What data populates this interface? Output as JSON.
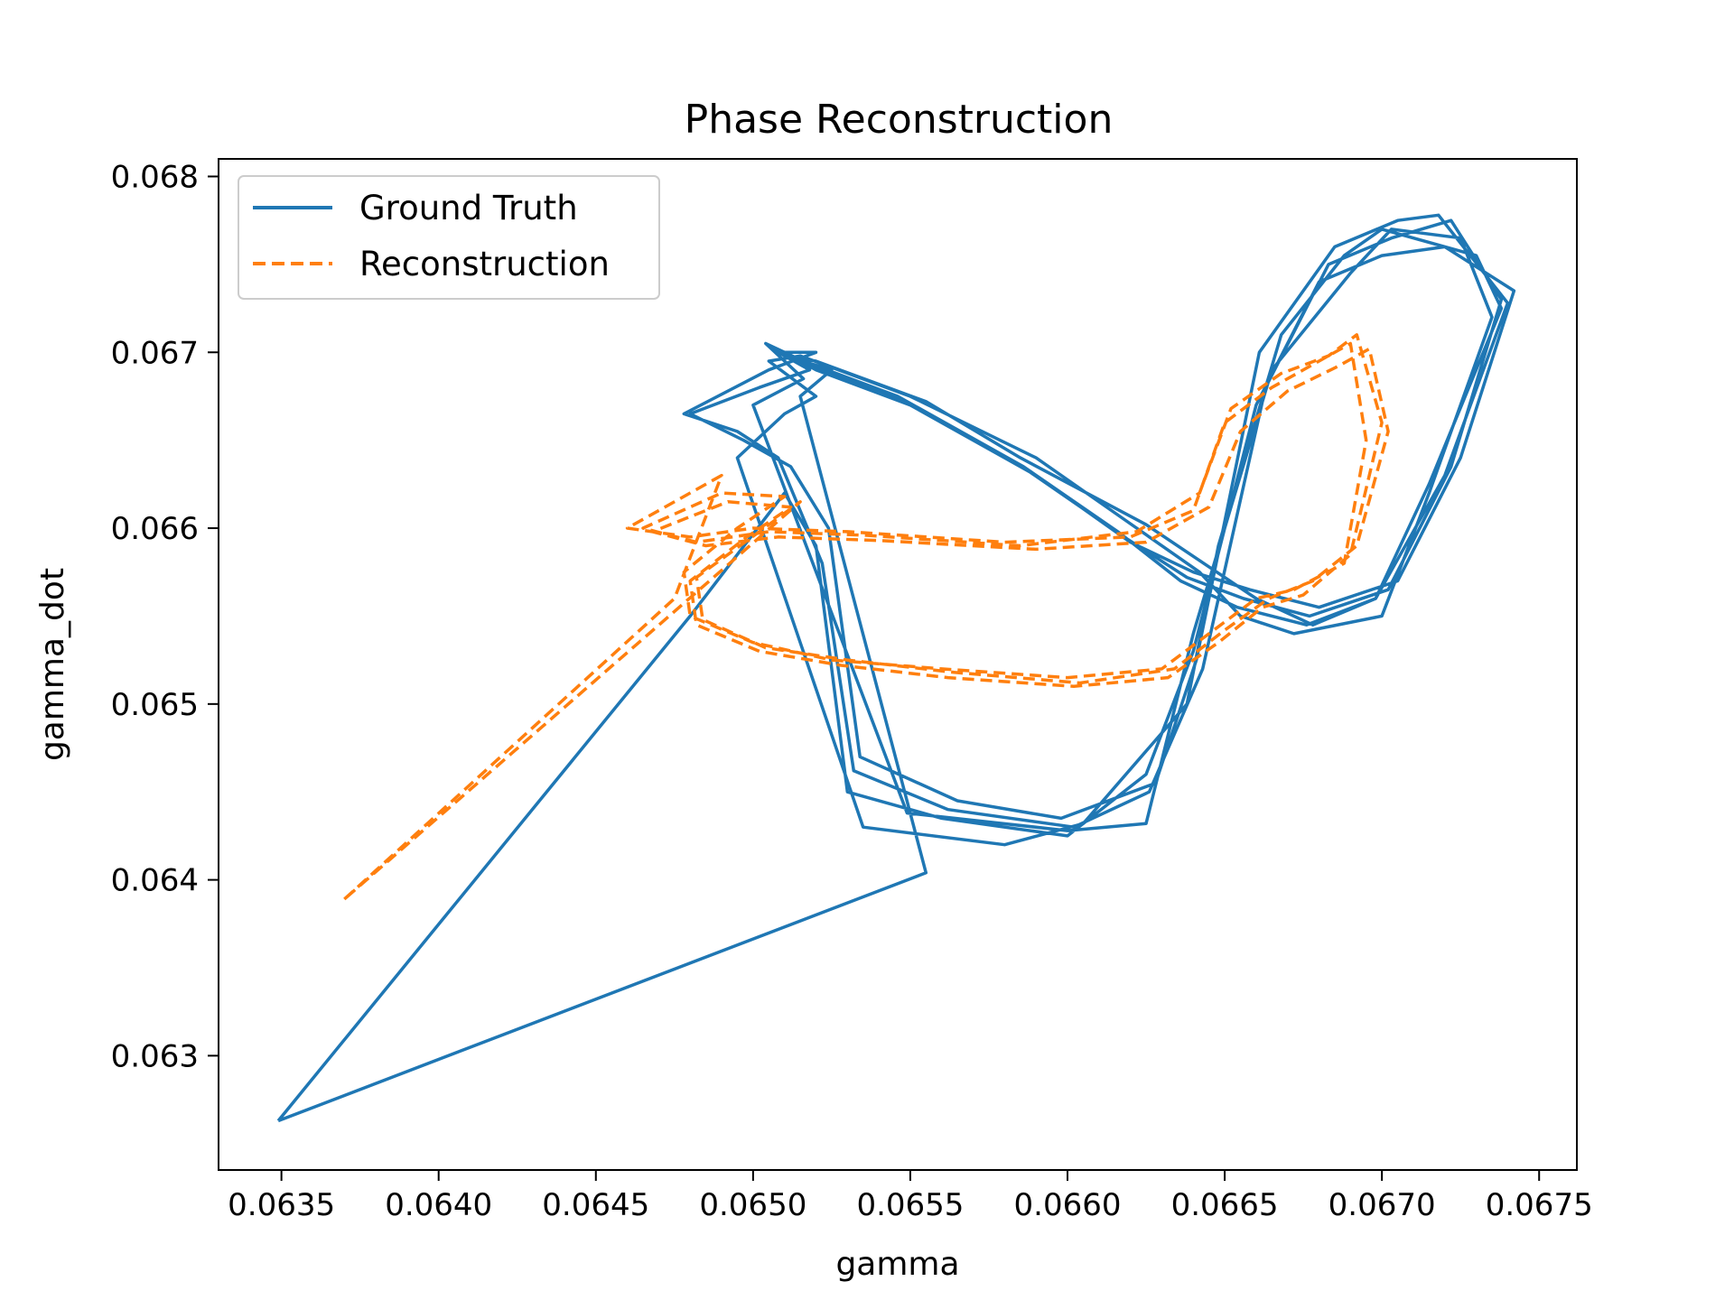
{
  "chart_data": {
    "type": "line",
    "title": "Phase Reconstruction",
    "xlabel": "gamma",
    "ylabel": "gamma_dot",
    "xlim": [
      0.0633,
      0.06762
    ],
    "ylim": [
      0.06235,
      0.0681
    ],
    "xticks": [
      0.0635,
      0.064,
      0.0645,
      0.065,
      0.0655,
      0.066,
      0.0665,
      0.067,
      0.0675
    ],
    "xtick_labels": [
      "0.0635",
      "0.0640",
      "0.0645",
      "0.0650",
      "0.0655",
      "0.0660",
      "0.0665",
      "0.0670",
      "0.0675"
    ],
    "yticks": [
      0.063,
      0.064,
      0.065,
      0.066,
      0.067,
      0.068
    ],
    "ytick_labels": [
      "0.063",
      "0.064",
      "0.065",
      "0.066",
      "0.067",
      "0.068"
    ],
    "grid": false,
    "legend_position": "top-left",
    "series": [
      {
        "name": "Ground Truth",
        "color": "#1f77b4",
        "style": "solid",
        "x": [
          0.06349,
          0.0648,
          0.0651,
          0.0652,
          0.0653,
          0.0656,
          0.066,
          0.06625,
          0.0664,
          0.0666,
          0.0668,
          0.067,
          0.0672,
          0.06742,
          0.06725,
          0.06705,
          0.0668,
          0.06658,
          0.0664,
          0.0662,
          0.0659,
          0.0655,
          0.0652,
          0.0651,
          0.0652,
          0.06505,
          0.06478,
          0.06495,
          0.06508,
          0.06522,
          0.06532,
          0.06562,
          0.06602,
          0.06626,
          0.06643,
          0.06663,
          0.06683,
          0.06703,
          0.06722,
          0.06738,
          0.06722,
          0.06702,
          0.06677,
          0.06656,
          0.06638,
          0.06618,
          0.06588,
          0.06548,
          0.06518,
          0.06506,
          0.06518,
          0.06502,
          0.0648,
          0.06497,
          0.06512,
          0.06524,
          0.06534,
          0.06565,
          0.06598,
          0.06628,
          0.06641,
          0.06661,
          0.06685,
          0.06705,
          0.06718,
          0.0674,
          0.0672,
          0.06698,
          0.06676,
          0.06654,
          0.06636,
          0.06616,
          0.06586,
          0.06546,
          0.06516,
          0.06504,
          0.06516,
          0.065,
          0.06549,
          0.066,
          0.06625,
          0.0664,
          0.06665,
          0.0669,
          0.06703,
          0.06725,
          0.06735,
          0.06715,
          0.067,
          0.06672,
          0.06655,
          0.06642,
          0.06622,
          0.0659,
          0.0655,
          0.06515,
          0.06505,
          0.0652,
          0.0651,
          0.06495,
          0.06535,
          0.0658,
          0.06605,
          0.06638,
          0.06648,
          0.06668,
          0.06688,
          0.067,
          0.0673,
          0.06738,
          0.06715,
          0.06698,
          0.06678,
          0.0666,
          0.06645,
          0.06625,
          0.06585,
          0.06555,
          0.0652,
          0.0651,
          0.06525,
          0.06515,
          0.06555,
          0.06349
        ],
        "y": [
          0.06263,
          0.0655,
          0.0662,
          0.0659,
          0.0645,
          0.06435,
          0.06425,
          0.0646,
          0.0653,
          0.0667,
          0.0674,
          0.06755,
          0.0676,
          0.06735,
          0.0664,
          0.0657,
          0.06555,
          0.06565,
          0.06575,
          0.06592,
          0.0663,
          0.0667,
          0.0669,
          0.067,
          0.067,
          0.0669,
          0.06665,
          0.06655,
          0.0664,
          0.0658,
          0.06462,
          0.0644,
          0.0643,
          0.0645,
          0.0652,
          0.0668,
          0.0675,
          0.06765,
          0.06775,
          0.0673,
          0.06635,
          0.06565,
          0.0655,
          0.0656,
          0.06572,
          0.06595,
          0.06632,
          0.06672,
          0.06693,
          0.06702,
          0.0669,
          0.0668,
          0.06665,
          0.0665,
          0.06635,
          0.066,
          0.0647,
          0.06445,
          0.06435,
          0.06455,
          0.06525,
          0.067,
          0.0676,
          0.06775,
          0.06778,
          0.06728,
          0.0663,
          0.0656,
          0.06545,
          0.06555,
          0.0657,
          0.06598,
          0.06635,
          0.06675,
          0.06695,
          0.06705,
          0.06685,
          0.0667,
          0.06438,
          0.06428,
          0.06432,
          0.0654,
          0.0669,
          0.06745,
          0.0677,
          0.06765,
          0.0672,
          0.0662,
          0.0655,
          0.0654,
          0.0655,
          0.06575,
          0.066,
          0.0664,
          0.06675,
          0.06698,
          0.06695,
          0.06675,
          0.06665,
          0.0664,
          0.0643,
          0.0642,
          0.06432,
          0.065,
          0.0659,
          0.0671,
          0.06755,
          0.0677,
          0.06755,
          0.06725,
          0.06625,
          0.0656,
          0.06545,
          0.0656,
          0.06578,
          0.06602,
          0.0664,
          0.06672,
          0.06695,
          0.06698,
          0.0669,
          0.06675,
          0.06404,
          0.06263
        ]
      },
      {
        "name": "Reconstruction",
        "color": "#ff7f0e",
        "style": "dashed",
        "x": [
          0.0637,
          0.06475,
          0.0649,
          0.0646,
          0.0648,
          0.065,
          0.0653,
          0.0658,
          0.0662,
          0.0664,
          0.0665,
          0.06665,
          0.0668,
          0.0669,
          0.06695,
          0.06688,
          0.06672,
          0.0666,
          0.06645,
          0.0663,
          0.066,
          0.0656,
          0.06525,
          0.065,
          0.0648,
          0.06478,
          0.06495,
          0.0651,
          0.0649,
          0.06465,
          0.06482,
          0.06505,
          0.06535,
          0.06585,
          0.06622,
          0.06642,
          0.06652,
          0.06668,
          0.06683,
          0.06692,
          0.067,
          0.0669,
          0.06675,
          0.06662,
          0.06648,
          0.06632,
          0.06602,
          0.06562,
          0.06528,
          0.06502,
          0.06482,
          0.0648,
          0.06498,
          0.06512,
          0.06492,
          0.06468,
          0.06485,
          0.06508,
          0.0654,
          0.0659,
          0.06625,
          0.06645,
          0.06655,
          0.0667,
          0.06686,
          0.06696,
          0.06702,
          0.06692,
          0.06678,
          0.06664,
          0.0665,
          0.06634,
          0.06604,
          0.06564,
          0.0653,
          0.06504,
          0.06484,
          0.06482,
          0.06502,
          0.06515,
          0.0637
        ],
        "y": [
          0.06389,
          0.0656,
          0.0663,
          0.066,
          0.06595,
          0.066,
          0.06598,
          0.06592,
          0.06595,
          0.0661,
          0.0666,
          0.0668,
          0.06695,
          0.06705,
          0.0665,
          0.0658,
          0.06565,
          0.0656,
          0.0654,
          0.0652,
          0.06515,
          0.0652,
          0.06525,
          0.06535,
          0.0655,
          0.06575,
          0.066,
          0.06618,
          0.0662,
          0.066,
          0.06592,
          0.06598,
          0.06596,
          0.0659,
          0.06598,
          0.0662,
          0.06668,
          0.06688,
          0.06698,
          0.0671,
          0.0666,
          0.06585,
          0.06562,
          0.06555,
          0.06535,
          0.06515,
          0.0651,
          0.06515,
          0.06522,
          0.0653,
          0.06545,
          0.0657,
          0.06595,
          0.06612,
          0.06615,
          0.06598,
          0.0659,
          0.06595,
          0.06593,
          0.06588,
          0.06592,
          0.06612,
          0.06655,
          0.06678,
          0.06692,
          0.06702,
          0.06655,
          0.0659,
          0.0657,
          0.0656,
          0.06542,
          0.0652,
          0.06512,
          0.06518,
          0.06525,
          0.06532,
          0.06548,
          0.06572,
          0.06598,
          0.06615,
          0.06389
        ]
      }
    ]
  }
}
